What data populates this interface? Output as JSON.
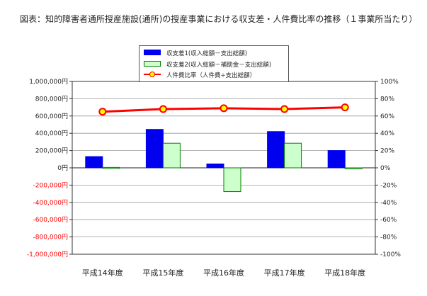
{
  "title": "図表：知的障害者通所授産施設(通所)の授産事業における収支差・人件費比率の推移（１事業所当たり）",
  "colors": {
    "bar1_fill": "#0000ee",
    "bar2_fill": "#ccffcc",
    "bar2_stroke": "#008000",
    "line": "#ff0000",
    "marker_fill": "#ffff00",
    "negative_tick_text": "#ff0000",
    "grid": "#9a9a9a"
  },
  "chart_data": {
    "type": "bar",
    "categories": [
      "平成14年度",
      "平成15年度",
      "平成16年度",
      "平成17年度",
      "平成18年度"
    ],
    "series": [
      {
        "name": "収支差1(収入総額－支出総額)",
        "type": "bar",
        "axis": "left",
        "values": [
          130000,
          445000,
          45000,
          420000,
          200000
        ]
      },
      {
        "name": "収支差2(収入総額－補助金－支出総額)",
        "type": "bar",
        "axis": "left",
        "values": [
          5000,
          285000,
          -275000,
          285000,
          -10000
        ]
      },
      {
        "name": "人件費比率（人件費÷支出総額）",
        "type": "line",
        "axis": "right",
        "values": [
          65,
          68,
          69,
          68,
          70
        ]
      }
    ],
    "left_axis": {
      "ylim": [
        -1000000,
        1000000
      ],
      "ticks": [
        1000000,
        800000,
        600000,
        400000,
        200000,
        0,
        -200000,
        -400000,
        -600000,
        -800000,
        -1000000
      ],
      "tick_labels": [
        "1,000,000円",
        "800,000円",
        "600,000円",
        "400,000円",
        "200,000円",
        "0円",
        "-200,000円",
        "-400,000円",
        "-600,000円",
        "-800,000円",
        "-1,000,000円"
      ]
    },
    "right_axis": {
      "ylim": [
        -100,
        100
      ],
      "ticks": [
        100,
        80,
        60,
        40,
        20,
        0,
        -20,
        -40,
        -60,
        -80,
        -100
      ],
      "tick_labels": [
        "100%",
        "80%",
        "60%",
        "40%",
        "20%",
        "0%",
        "-20%",
        "-40%",
        "-60%",
        "-80%",
        "-100%"
      ]
    },
    "grid": true,
    "legend_position": "top-center"
  }
}
